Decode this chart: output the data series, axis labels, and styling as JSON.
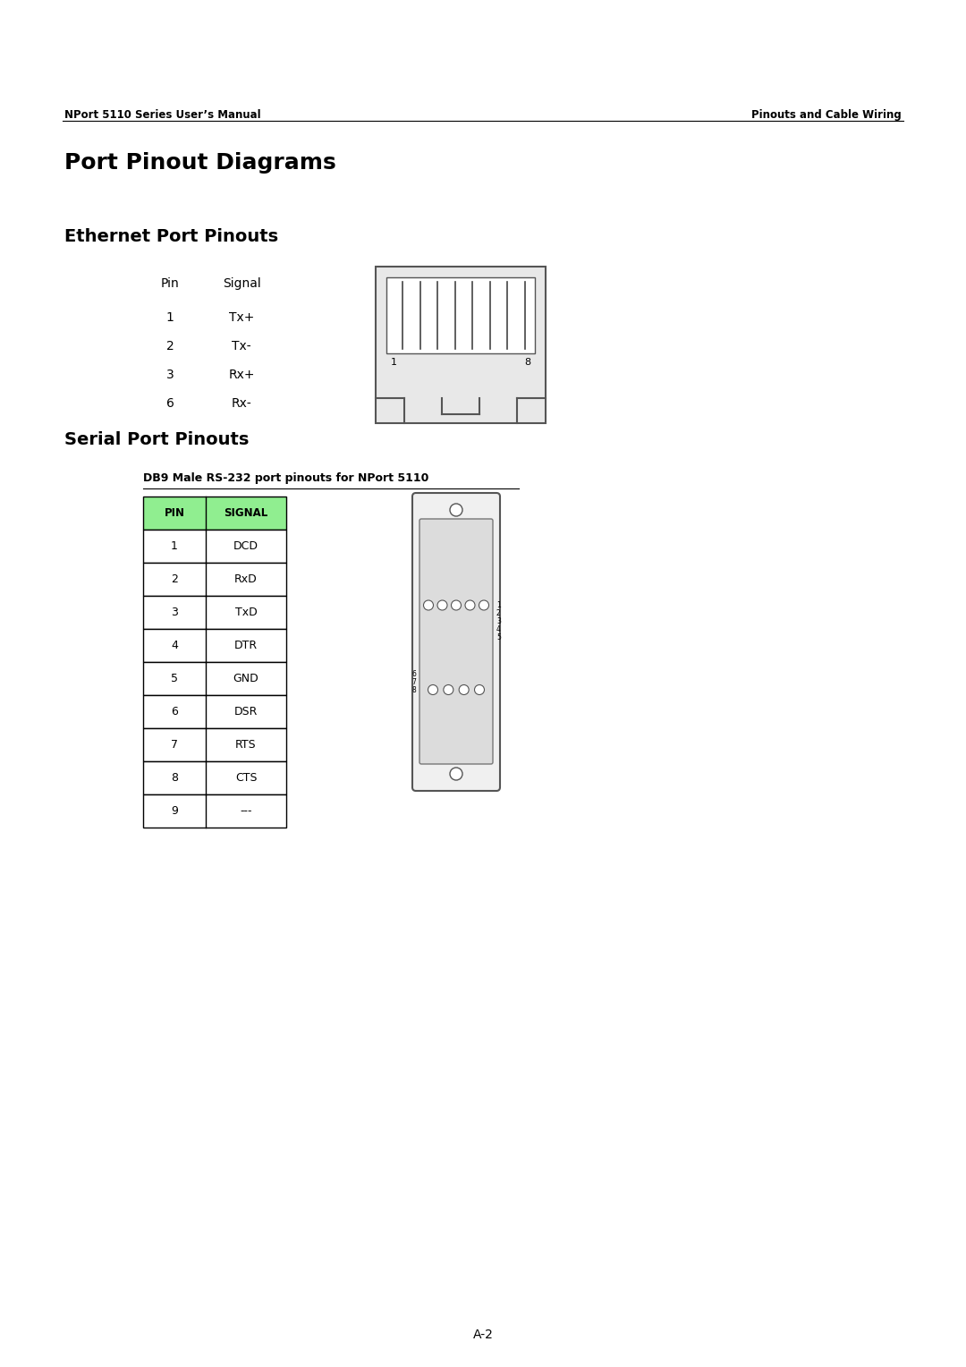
{
  "bg_color": "#ffffff",
  "page_width": 10.8,
  "page_height": 15.28,
  "header_left": "NPort 5110 Series User’s Manual",
  "header_right": "Pinouts and Cable Wiring",
  "main_title": "Port Pinout Diagrams",
  "eth_section_title": "Ethernet Port Pinouts",
  "eth_col_pin": "Pin",
  "eth_col_signal": "Signal",
  "eth_pins": [
    "1",
    "2",
    "3",
    "6"
  ],
  "eth_signals": [
    "Tx+",
    "Tx-",
    "Rx+",
    "Rx-"
  ],
  "serial_section_title": "Serial Port Pinouts",
  "serial_subtitle": "DB9 Male RS-232 port pinouts for NPort 5110",
  "serial_pins": [
    "1",
    "2",
    "3",
    "4",
    "5",
    "6",
    "7",
    "8",
    "9"
  ],
  "serial_signals": [
    "DCD",
    "RxD",
    "TxD",
    "DTR",
    "GND",
    "DSR",
    "RTS",
    "CTS",
    "---"
  ],
  "table_header_bg": "#90EE90",
  "table_border_color": "#000000",
  "footer_text": "A-2"
}
